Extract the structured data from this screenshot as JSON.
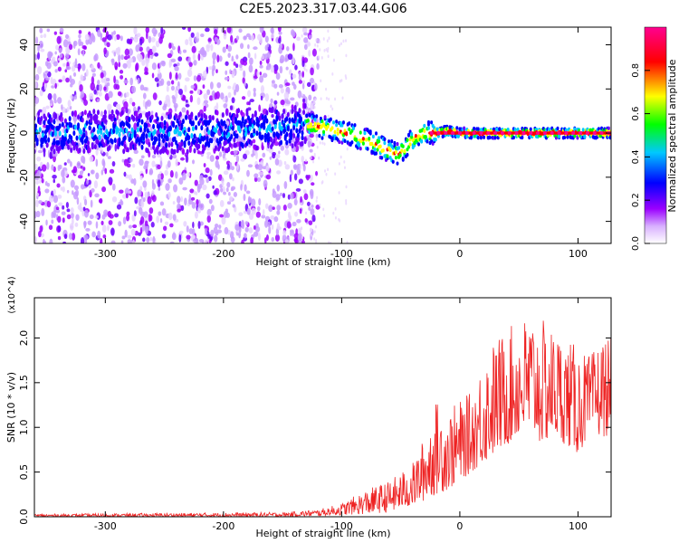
{
  "chart_data": [
    {
      "type": "heatmap",
      "title": "C2E5.2023.317.03.44.G06",
      "xlabel": "Height of straight line (km)",
      "ylabel": "Frequency (Hz)",
      "xlim": [
        -360,
        128
      ],
      "ylim": [
        -50,
        48
      ],
      "xticks": [
        -300,
        -200,
        -100,
        0,
        100
      ],
      "yticks": [
        -40,
        -20,
        0,
        20,
        40
      ],
      "colorbar": {
        "label": "Normalized spectral amplitude",
        "range": [
          0,
          1
        ],
        "ticks": [
          "0.0",
          "0.2",
          "0.4",
          "0.6",
          "0.8"
        ],
        "colors": [
          "#ffffff",
          "#9b00ff",
          "#0000ff",
          "#00c8ff",
          "#00ff00",
          "#ffff00",
          "#ff0000",
          "#ff0090"
        ]
      },
      "ridge": {
        "description": "Dominant signal ridge: noisy across -360..-130 km, curving down to about -10 Hz near -55 km, steady line near 0 Hz from -20 km upward.",
        "x": [
          -360,
          -300,
          -250,
          -200,
          -160,
          -130,
          -110,
          -90,
          -75,
          -60,
          -52,
          -45,
          -38,
          -30,
          -20,
          -10,
          0,
          50,
          128
        ],
        "y": [
          0,
          1,
          0,
          1,
          2,
          4,
          2,
          -1,
          -4,
          -8,
          -10,
          -6,
          -2,
          0,
          0,
          1,
          0,
          0,
          0
        ]
      }
    },
    {
      "type": "line",
      "xlabel": "Height of straight line (km)",
      "ylabel": "SNR (10 * v/v)",
      "y_multiplier": "(x10^4)",
      "xlim": [
        -360,
        128
      ],
      "ylim": [
        0,
        24500
      ],
      "xticks": [
        -300,
        -200,
        -100,
        0,
        100
      ],
      "yticks": [
        0,
        5000,
        10000,
        15000,
        20000
      ],
      "ytick_labels": [
        "0.0",
        "0.5",
        "1.0",
        "1.5",
        "2.0"
      ],
      "series": [
        {
          "color": "#ee2222",
          "envelope_x": [
            -360,
            -150,
            -120,
            -100,
            -80,
            -60,
            -40,
            -30,
            -20,
            -10,
            0,
            10,
            20,
            30,
            40,
            50,
            60,
            70,
            80,
            90,
            100,
            110,
            120,
            128
          ],
          "envelope_low": [
            0,
            0,
            100,
            200,
            300,
            500,
            1200,
            1800,
            2500,
            3000,
            4000,
            5000,
            6000,
            7000,
            8000,
            9000,
            9000,
            8000,
            9000,
            8000,
            7000,
            9000,
            9000,
            9000
          ],
          "envelope_high": [
            300,
            500,
            800,
            1500,
            3000,
            4000,
            6000,
            9000,
            13000,
            12000,
            13000,
            14000,
            18000,
            20000,
            21000,
            22000,
            23000,
            22000,
            21000,
            20000,
            19000,
            18000,
            20000,
            20000
          ]
        }
      ]
    }
  ]
}
